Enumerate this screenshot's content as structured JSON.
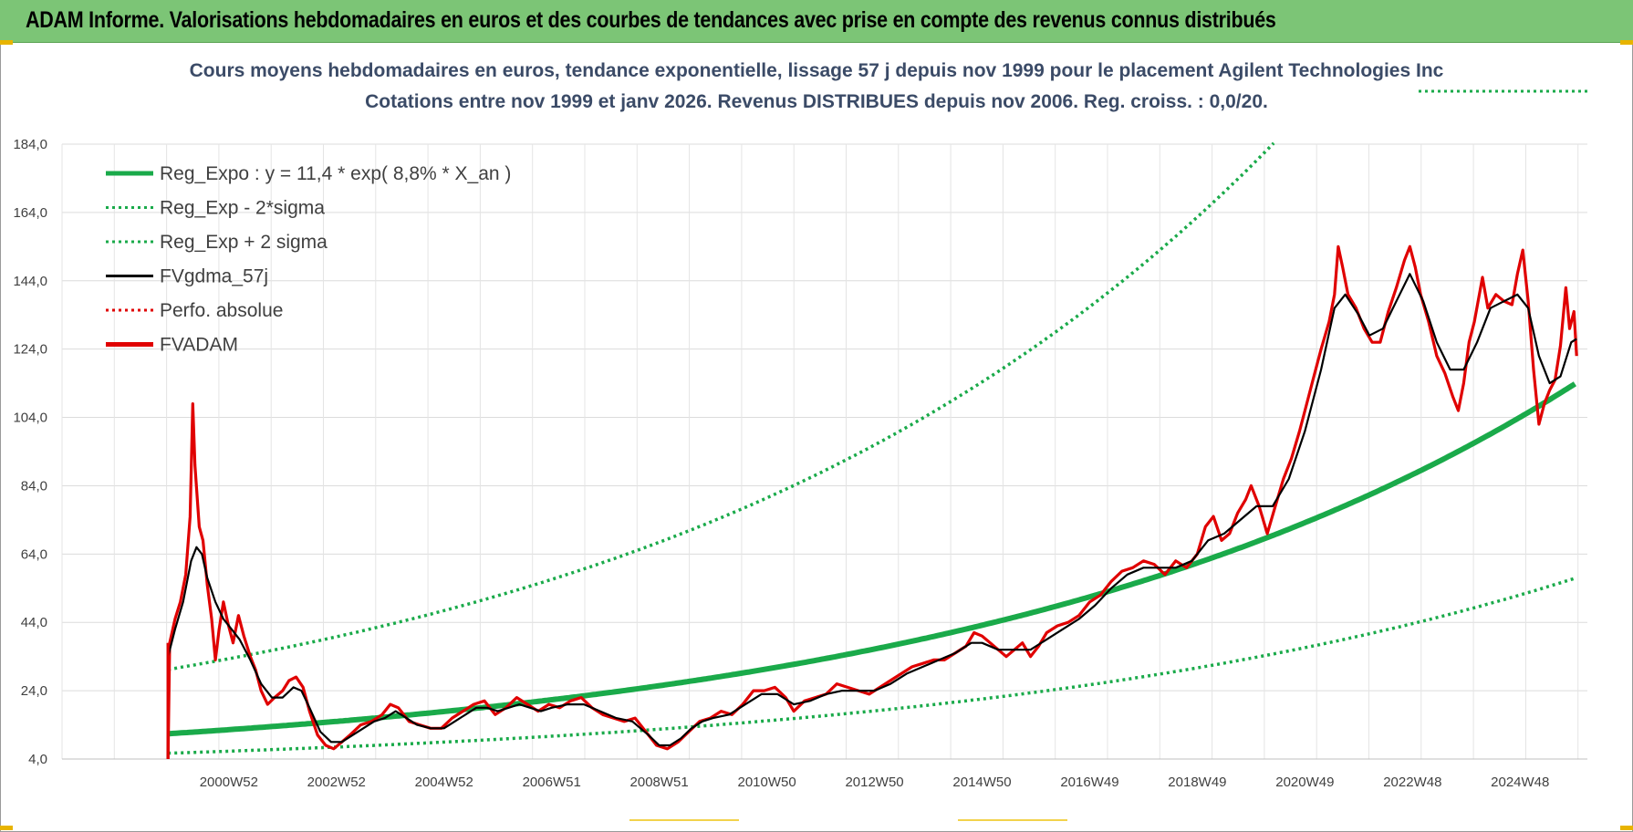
{
  "header": {
    "title": "ADAM Informe. Valorisations hebdomadaires en euros et des courbes de tendances avec prise en compte des revenus connus distribués"
  },
  "colors": {
    "header_bg": "#7cc576",
    "reg_expo": "#1aaa4a",
    "fvgdma": "#000000",
    "fvadam": "#e00000",
    "perfo": "#e00000"
  },
  "chart_data": {
    "type": "line",
    "title_line1": "Cours moyens hebdomadaires en euros, tendance exponentielle, lissage 57 j depuis nov 1999  pour le placement Agilent Technologies Inc",
    "title_line2": "Cotations entre nov 1999 et janv 2026. Revenus DISTRIBUES depuis nov 2006. Reg. croiss. : 0,0/20.",
    "ylim": [
      4,
      184
    ],
    "xlim": [
      1997.9,
      2026.25
    ],
    "y_ticks": [
      "184,0",
      "164,0",
      "144,0",
      "124,0",
      "104,0",
      "84,0",
      "64,0",
      "44,0",
      "24,0",
      "4,0"
    ],
    "y_tick_values": [
      184,
      164,
      144,
      124,
      104,
      84,
      64,
      44,
      24,
      4
    ],
    "x_tick_labels": [
      "2000W52",
      "2002W52",
      "2004W52",
      "2006W51",
      "2008W51",
      "2010W50",
      "2012W50",
      "2014W50",
      "2016W49",
      "2018W49",
      "2020W49",
      "2022W48",
      "2024W48"
    ],
    "x_tick_years": [
      2001.0,
      2003.0,
      2005.0,
      2007.0,
      2009.0,
      2011.0,
      2013.0,
      2015.0,
      2017.0,
      2019.0,
      2021.0,
      2023.0,
      2025.0
    ],
    "legend": [
      {
        "label": "Reg_Expo : y = 11,4 * exp( 8,8% *  X_an )",
        "style": "solid-thick",
        "color": "#1aaa4a"
      },
      {
        "label": "Reg_Exp - 2*sigma",
        "style": "dotted",
        "color": "#1aaa4a"
      },
      {
        "label": "Reg_Exp + 2 sigma",
        "style": "dotted",
        "color": "#1aaa4a"
      },
      {
        "label": "FVgdma_57j",
        "style": "solid",
        "color": "#000000"
      },
      {
        "label": "Perfo. absolue",
        "style": "dotted",
        "color": "#e00000"
      },
      {
        "label": "FVADAM",
        "style": "solid-thick",
        "color": "#e00000"
      }
    ],
    "regression": {
      "a": 11.4,
      "b": 0.088,
      "x0": 1999.87,
      "x_end": 2026.05,
      "lower_factor": 0.5,
      "upper_factor": 2.65
    },
    "series": [
      {
        "name": "FVADAM",
        "points": [
          [
            1999.87,
            4
          ],
          [
            1999.9,
            38
          ],
          [
            2000.0,
            45
          ],
          [
            2000.1,
            50
          ],
          [
            2000.2,
            58
          ],
          [
            2000.28,
            75
          ],
          [
            2000.33,
            108
          ],
          [
            2000.37,
            90
          ],
          [
            2000.45,
            72
          ],
          [
            2000.52,
            68
          ],
          [
            2000.6,
            55
          ],
          [
            2000.68,
            45
          ],
          [
            2000.75,
            33
          ],
          [
            2000.82,
            42
          ],
          [
            2000.9,
            50
          ],
          [
            2000.98,
            44
          ],
          [
            2001.08,
            38
          ],
          [
            2001.18,
            46
          ],
          [
            2001.28,
            40
          ],
          [
            2001.4,
            34
          ],
          [
            2001.5,
            30
          ],
          [
            2001.6,
            24
          ],
          [
            2001.72,
            20
          ],
          [
            2001.85,
            22
          ],
          [
            2002.0,
            24
          ],
          [
            2002.12,
            27
          ],
          [
            2002.25,
            28
          ],
          [
            2002.38,
            25
          ],
          [
            2002.5,
            18
          ],
          [
            2002.65,
            11
          ],
          [
            2002.8,
            8
          ],
          [
            2002.95,
            7
          ],
          [
            2003.1,
            9
          ],
          [
            2003.25,
            11
          ],
          [
            2003.45,
            14
          ],
          [
            2003.65,
            15
          ],
          [
            2003.85,
            17
          ],
          [
            2004.0,
            20
          ],
          [
            2004.15,
            19
          ],
          [
            2004.35,
            15
          ],
          [
            2004.55,
            14
          ],
          [
            2004.75,
            13
          ],
          [
            2004.95,
            13
          ],
          [
            2005.15,
            16
          ],
          [
            2005.35,
            18
          ],
          [
            2005.55,
            20
          ],
          [
            2005.75,
            21
          ],
          [
            2005.95,
            17
          ],
          [
            2006.15,
            19
          ],
          [
            2006.35,
            22
          ],
          [
            2006.55,
            20
          ],
          [
            2006.75,
            18
          ],
          [
            2006.95,
            20
          ],
          [
            2007.15,
            19
          ],
          [
            2007.35,
            21
          ],
          [
            2007.55,
            22
          ],
          [
            2007.75,
            19
          ],
          [
            2007.95,
            17
          ],
          [
            2008.15,
            16
          ],
          [
            2008.35,
            15
          ],
          [
            2008.55,
            16
          ],
          [
            2008.75,
            12
          ],
          [
            2008.95,
            8
          ],
          [
            2009.15,
            7
          ],
          [
            2009.35,
            9
          ],
          [
            2009.55,
            12
          ],
          [
            2009.75,
            15
          ],
          [
            2009.95,
            16
          ],
          [
            2010.15,
            18
          ],
          [
            2010.35,
            17
          ],
          [
            2010.55,
            20
          ],
          [
            2010.75,
            24
          ],
          [
            2010.95,
            24
          ],
          [
            2011.15,
            25
          ],
          [
            2011.35,
            22
          ],
          [
            2011.5,
            18
          ],
          [
            2011.7,
            21
          ],
          [
            2011.9,
            22
          ],
          [
            2012.1,
            23
          ],
          [
            2012.3,
            26
          ],
          [
            2012.5,
            25
          ],
          [
            2012.7,
            24
          ],
          [
            2012.9,
            23
          ],
          [
            2013.1,
            25
          ],
          [
            2013.3,
            27
          ],
          [
            2013.5,
            29
          ],
          [
            2013.7,
            31
          ],
          [
            2013.9,
            32
          ],
          [
            2014.1,
            33
          ],
          [
            2014.3,
            33
          ],
          [
            2014.5,
            35
          ],
          [
            2014.7,
            37
          ],
          [
            2014.85,
            41
          ],
          [
            2015.0,
            40
          ],
          [
            2015.15,
            38
          ],
          [
            2015.3,
            36
          ],
          [
            2015.45,
            34
          ],
          [
            2015.6,
            36
          ],
          [
            2015.75,
            38
          ],
          [
            2015.9,
            34
          ],
          [
            2016.05,
            37
          ],
          [
            2016.2,
            41
          ],
          [
            2016.4,
            43
          ],
          [
            2016.6,
            44
          ],
          [
            2016.8,
            46
          ],
          [
            2017.0,
            50
          ],
          [
            2017.2,
            52
          ],
          [
            2017.4,
            56
          ],
          [
            2017.6,
            59
          ],
          [
            2017.8,
            60
          ],
          [
            2018.0,
            62
          ],
          [
            2018.2,
            61
          ],
          [
            2018.4,
            58
          ],
          [
            2018.6,
            62
          ],
          [
            2018.8,
            60
          ],
          [
            2019.0,
            64
          ],
          [
            2019.15,
            72
          ],
          [
            2019.3,
            75
          ],
          [
            2019.45,
            68
          ],
          [
            2019.6,
            70
          ],
          [
            2019.75,
            76
          ],
          [
            2019.9,
            80
          ],
          [
            2020.0,
            84
          ],
          [
            2020.15,
            78
          ],
          [
            2020.3,
            70
          ],
          [
            2020.45,
            78
          ],
          [
            2020.6,
            86
          ],
          [
            2020.75,
            92
          ],
          [
            2020.9,
            100
          ],
          [
            2021.0,
            106
          ],
          [
            2021.15,
            115
          ],
          [
            2021.3,
            124
          ],
          [
            2021.45,
            132
          ],
          [
            2021.55,
            140
          ],
          [
            2021.62,
            154
          ],
          [
            2021.7,
            148
          ],
          [
            2021.8,
            140
          ],
          [
            2021.95,
            136
          ],
          [
            2022.1,
            130
          ],
          [
            2022.25,
            126
          ],
          [
            2022.4,
            126
          ],
          [
            2022.55,
            135
          ],
          [
            2022.7,
            142
          ],
          [
            2022.85,
            150
          ],
          [
            2022.95,
            154
          ],
          [
            2023.05,
            148
          ],
          [
            2023.15,
            140
          ],
          [
            2023.3,
            132
          ],
          [
            2023.45,
            122
          ],
          [
            2023.6,
            117
          ],
          [
            2023.75,
            110
          ],
          [
            2023.85,
            106
          ],
          [
            2023.95,
            114
          ],
          [
            2024.05,
            126
          ],
          [
            2024.15,
            132
          ],
          [
            2024.3,
            145
          ],
          [
            2024.4,
            136
          ],
          [
            2024.55,
            140
          ],
          [
            2024.7,
            138
          ],
          [
            2024.85,
            137
          ],
          [
            2024.95,
            146
          ],
          [
            2025.05,
            153
          ],
          [
            2025.15,
            138
          ],
          [
            2025.25,
            118
          ],
          [
            2025.35,
            102
          ],
          [
            2025.45,
            108
          ],
          [
            2025.55,
            112
          ],
          [
            2025.65,
            115
          ],
          [
            2025.75,
            125
          ],
          [
            2025.85,
            142
          ],
          [
            2025.92,
            130
          ],
          [
            2026.0,
            135
          ],
          [
            2026.05,
            122
          ]
        ]
      },
      {
        "name": "FVgdma_57j",
        "points": [
          [
            1999.87,
            34
          ],
          [
            2000.0,
            42
          ],
          [
            2000.15,
            50
          ],
          [
            2000.3,
            62
          ],
          [
            2000.4,
            66
          ],
          [
            2000.5,
            64
          ],
          [
            2000.6,
            57
          ],
          [
            2000.75,
            50
          ],
          [
            2000.9,
            45
          ],
          [
            2001.05,
            42
          ],
          [
            2001.2,
            39
          ],
          [
            2001.4,
            33
          ],
          [
            2001.6,
            26
          ],
          [
            2001.8,
            22
          ],
          [
            2002.0,
            22
          ],
          [
            2002.2,
            25
          ],
          [
            2002.35,
            24
          ],
          [
            2002.5,
            19
          ],
          [
            2002.7,
            12
          ],
          [
            2002.9,
            9
          ],
          [
            2003.1,
            9
          ],
          [
            2003.3,
            11
          ],
          [
            2003.5,
            13
          ],
          [
            2003.7,
            15
          ],
          [
            2003.9,
            16
          ],
          [
            2004.1,
            18
          ],
          [
            2004.3,
            16
          ],
          [
            2004.5,
            14
          ],
          [
            2004.75,
            13
          ],
          [
            2005.0,
            13
          ],
          [
            2005.2,
            15
          ],
          [
            2005.4,
            17
          ],
          [
            2005.6,
            19
          ],
          [
            2005.8,
            19
          ],
          [
            2006.0,
            18
          ],
          [
            2006.2,
            19
          ],
          [
            2006.4,
            20
          ],
          [
            2006.6,
            19
          ],
          [
            2006.8,
            18
          ],
          [
            2007.0,
            19
          ],
          [
            2007.3,
            20
          ],
          [
            2007.6,
            20
          ],
          [
            2007.9,
            18
          ],
          [
            2008.2,
            16
          ],
          [
            2008.5,
            15
          ],
          [
            2008.8,
            11
          ],
          [
            2009.0,
            8
          ],
          [
            2009.2,
            8
          ],
          [
            2009.4,
            10
          ],
          [
            2009.6,
            13
          ],
          [
            2009.8,
            15
          ],
          [
            2010.0,
            16
          ],
          [
            2010.3,
            17
          ],
          [
            2010.6,
            20
          ],
          [
            2010.9,
            23
          ],
          [
            2011.2,
            23
          ],
          [
            2011.5,
            20
          ],
          [
            2011.8,
            21
          ],
          [
            2012.1,
            23
          ],
          [
            2012.4,
            24
          ],
          [
            2012.7,
            24
          ],
          [
            2013.0,
            24
          ],
          [
            2013.3,
            26
          ],
          [
            2013.6,
            29
          ],
          [
            2013.9,
            31
          ],
          [
            2014.2,
            33
          ],
          [
            2014.5,
            35
          ],
          [
            2014.8,
            38
          ],
          [
            2015.0,
            38
          ],
          [
            2015.3,
            36
          ],
          [
            2015.6,
            36
          ],
          [
            2015.9,
            36
          ],
          [
            2016.2,
            39
          ],
          [
            2016.5,
            42
          ],
          [
            2016.8,
            45
          ],
          [
            2017.1,
            49
          ],
          [
            2017.4,
            54
          ],
          [
            2017.7,
            58
          ],
          [
            2018.0,
            60
          ],
          [
            2018.3,
            60
          ],
          [
            2018.6,
            60
          ],
          [
            2018.9,
            62
          ],
          [
            2019.2,
            68
          ],
          [
            2019.5,
            70
          ],
          [
            2019.8,
            74
          ],
          [
            2020.1,
            78
          ],
          [
            2020.4,
            78
          ],
          [
            2020.7,
            86
          ],
          [
            2021.0,
            100
          ],
          [
            2021.3,
            118
          ],
          [
            2021.55,
            136
          ],
          [
            2021.75,
            140
          ],
          [
            2022.0,
            134
          ],
          [
            2022.2,
            128
          ],
          [
            2022.45,
            130
          ],
          [
            2022.7,
            138
          ],
          [
            2022.95,
            146
          ],
          [
            2023.2,
            138
          ],
          [
            2023.45,
            126
          ],
          [
            2023.7,
            118
          ],
          [
            2023.95,
            118
          ],
          [
            2024.2,
            126
          ],
          [
            2024.45,
            136
          ],
          [
            2024.7,
            138
          ],
          [
            2024.95,
            140
          ],
          [
            2025.15,
            136
          ],
          [
            2025.35,
            122
          ],
          [
            2025.55,
            114
          ],
          [
            2025.75,
            116
          ],
          [
            2025.95,
            126
          ],
          [
            2026.05,
            127
          ]
        ]
      }
    ]
  }
}
